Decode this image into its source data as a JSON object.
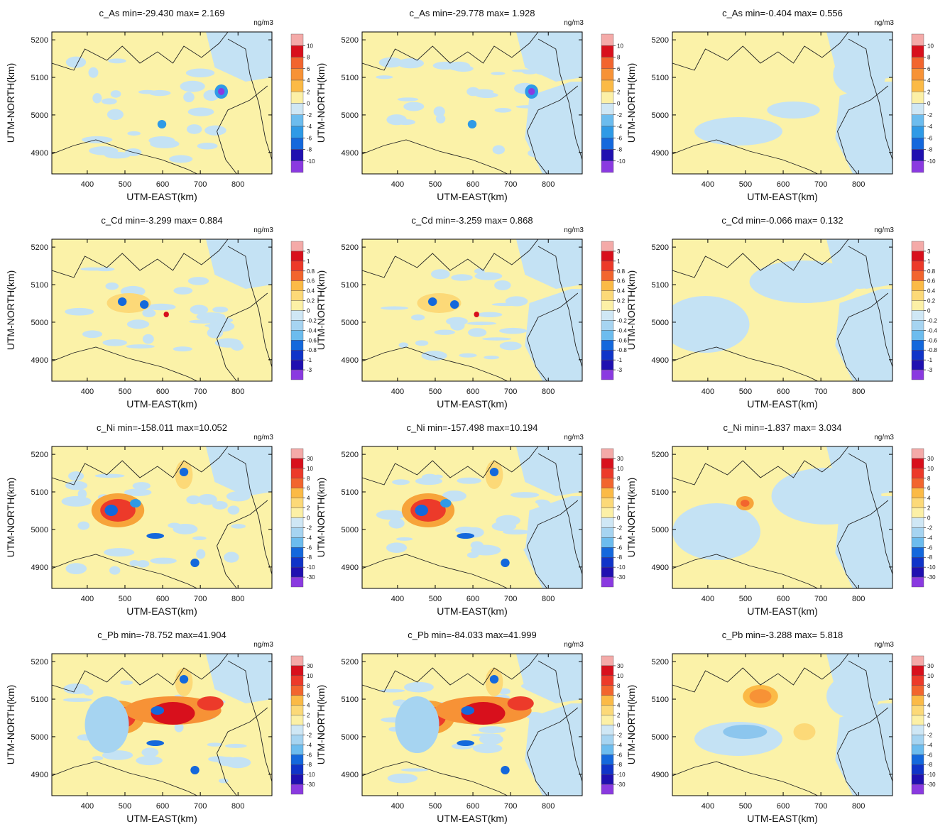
{
  "chart_data": [
    {
      "type": "contour-map",
      "title": "c_As min=-29.430 max= 2.169",
      "unit": "ng/m3",
      "x_label": "UTM-EAST(km)",
      "y_label": "UTM-NORTH(km)",
      "xlim": [
        306,
        890
      ],
      "ylim": [
        4843,
        5221
      ],
      "xticks": [
        400,
        500,
        600,
        700,
        800
      ],
      "yticks": [
        4900,
        5000,
        5100,
        5200
      ],
      "colorbar_ticks": [
        10,
        8,
        6,
        4,
        2,
        0,
        -2,
        -4,
        -6,
        -8,
        -10
      ]
    },
    {
      "type": "contour-map",
      "title": "c_As min=-29.778 max= 1.928",
      "unit": "ng/m3",
      "x_label": "UTM-EAST(km)",
      "y_label": "UTM-NORTH(km)",
      "xlim": [
        306,
        890
      ],
      "ylim": [
        4843,
        5221
      ],
      "xticks": [
        400,
        500,
        600,
        700,
        800
      ],
      "yticks": [
        4900,
        5000,
        5100,
        5200
      ],
      "colorbar_ticks": [
        10,
        8,
        6,
        4,
        2,
        0,
        -2,
        -4,
        -6,
        -8,
        -10
      ]
    },
    {
      "type": "contour-map",
      "title": "c_As min=-0.404 max= 0.556",
      "unit": "ng/m3",
      "x_label": "UTM-EAST(km)",
      "y_label": "UTM-NORTH(km)",
      "xlim": [
        306,
        890
      ],
      "ylim": [
        4843,
        5221
      ],
      "xticks": [
        400,
        500,
        600,
        700,
        800
      ],
      "yticks": [
        4900,
        5000,
        5100,
        5200
      ],
      "colorbar_ticks": [
        10,
        8,
        6,
        4,
        2,
        0,
        -2,
        -4,
        -6,
        -8,
        -10
      ]
    },
    {
      "type": "contour-map",
      "title": "c_Cd min=-3.299 max= 0.884",
      "unit": "ng/m3",
      "x_label": "UTM-EAST(km)",
      "y_label": "UTM-NORTH(km)",
      "xlim": [
        306,
        890
      ],
      "ylim": [
        4843,
        5221
      ],
      "xticks": [
        400,
        500,
        600,
        700,
        800
      ],
      "yticks": [
        4900,
        5000,
        5100,
        5200
      ],
      "colorbar_ticks": [
        3,
        1,
        0.8,
        0.6,
        0.4,
        0.2,
        0,
        -0.2,
        -0.4,
        -0.6,
        -0.8,
        -1,
        -3
      ]
    },
    {
      "type": "contour-map",
      "title": "c_Cd min=-3.259 max= 0.868",
      "unit": "ng/m3",
      "x_label": "UTM-EAST(km)",
      "y_label": "UTM-NORTH(km)",
      "xlim": [
        306,
        890
      ],
      "ylim": [
        4843,
        5221
      ],
      "xticks": [
        400,
        500,
        600,
        700,
        800
      ],
      "yticks": [
        4900,
        5000,
        5100,
        5200
      ],
      "colorbar_ticks": [
        3,
        1,
        0.8,
        0.6,
        0.4,
        0.2,
        0,
        -0.2,
        -0.4,
        -0.6,
        -0.8,
        -1,
        -3
      ]
    },
    {
      "type": "contour-map",
      "title": "c_Cd min=-0.066 max= 0.132",
      "unit": "ng/m3",
      "x_label": "UTM-EAST(km)",
      "y_label": "UTM-NORTH(km)",
      "xlim": [
        306,
        890
      ],
      "ylim": [
        4843,
        5221
      ],
      "xticks": [
        400,
        500,
        600,
        700,
        800
      ],
      "yticks": [
        4900,
        5000,
        5100,
        5200
      ],
      "colorbar_ticks": [
        3,
        1,
        0.8,
        0.6,
        0.4,
        0.2,
        0,
        -0.2,
        -0.4,
        -0.6,
        -0.8,
        -1,
        -3
      ]
    },
    {
      "type": "contour-map",
      "title": "c_Ni min=-158.011 max=10.052",
      "unit": "ng/m3",
      "x_label": "UTM-EAST(km)",
      "y_label": "UTM-NORTH(km)",
      "xlim": [
        306,
        890
      ],
      "ylim": [
        4843,
        5221
      ],
      "xticks": [
        400,
        500,
        600,
        700,
        800
      ],
      "yticks": [
        4900,
        5000,
        5100,
        5200
      ],
      "colorbar_ticks": [
        30,
        10,
        8,
        6,
        4,
        2,
        0,
        -2,
        -4,
        -6,
        -8,
        -10,
        -30
      ]
    },
    {
      "type": "contour-map",
      "title": "c_Ni min=-157.498 max=10.194",
      "unit": "ng/m3",
      "x_label": "UTM-EAST(km)",
      "y_label": "UTM-NORTH(km)",
      "xlim": [
        306,
        890
      ],
      "ylim": [
        4843,
        5221
      ],
      "xticks": [
        400,
        500,
        600,
        700,
        800
      ],
      "yticks": [
        4900,
        5000,
        5100,
        5200
      ],
      "colorbar_ticks": [
        30,
        10,
        8,
        6,
        4,
        2,
        0,
        -2,
        -4,
        -6,
        -8,
        -10,
        -30
      ]
    },
    {
      "type": "contour-map",
      "title": "c_Ni min=-1.837 max= 3.034",
      "unit": "ng/m3",
      "x_label": "UTM-EAST(km)",
      "y_label": "UTM-NORTH(km)",
      "xlim": [
        306,
        890
      ],
      "ylim": [
        4843,
        5221
      ],
      "xticks": [
        400,
        500,
        600,
        700,
        800
      ],
      "yticks": [
        4900,
        5000,
        5100,
        5200
      ],
      "colorbar_ticks": [
        30,
        10,
        8,
        6,
        4,
        2,
        0,
        -2,
        -4,
        -6,
        -8,
        -10,
        -30
      ]
    },
    {
      "type": "contour-map",
      "title": "c_Pb min=-78.752 max=41.904",
      "unit": "ng/m3",
      "x_label": "UTM-EAST(km)",
      "y_label": "UTM-NORTH(km)",
      "xlim": [
        306,
        890
      ],
      "ylim": [
        4843,
        5221
      ],
      "xticks": [
        400,
        500,
        600,
        700,
        800
      ],
      "yticks": [
        4900,
        5000,
        5100,
        5200
      ],
      "colorbar_ticks": [
        30,
        10,
        8,
        6,
        4,
        2,
        0,
        -2,
        -4,
        -6,
        -8,
        -10,
        -30
      ]
    },
    {
      "type": "contour-map",
      "title": "c_Pb min=-84.033 max=41.999",
      "unit": "ng/m3",
      "x_label": "UTM-EAST(km)",
      "y_label": "UTM-NORTH(km)",
      "xlim": [
        306,
        890
      ],
      "ylim": [
        4843,
        5221
      ],
      "xticks": [
        400,
        500,
        600,
        700,
        800
      ],
      "yticks": [
        4900,
        5000,
        5100,
        5200
      ],
      "colorbar_ticks": [
        30,
        10,
        8,
        6,
        4,
        2,
        0,
        -2,
        -4,
        -6,
        -8,
        -10,
        -30
      ]
    },
    {
      "type": "contour-map",
      "title": "c_Pb min=-3.288 max= 5.818",
      "unit": "ng/m3",
      "x_label": "UTM-EAST(km)",
      "y_label": "UTM-NORTH(km)",
      "xlim": [
        306,
        890
      ],
      "ylim": [
        4843,
        5221
      ],
      "xticks": [
        400,
        500,
        600,
        700,
        800
      ],
      "yticks": [
        4900,
        5000,
        5100,
        5200
      ],
      "colorbar_ticks": [
        30,
        10,
        8,
        6,
        4,
        2,
        0,
        -2,
        -4,
        -6,
        -8,
        -10,
        -30
      ]
    }
  ],
  "palette": [
    "#f4aaa8",
    "#d8101c",
    "#ec3a2a",
    "#f2652e",
    "#f79236",
    "#fbba46",
    "#fcd978",
    "#fcf0a6",
    "#cfe7f5",
    "#a6d4f1",
    "#6cbcee",
    "#2f9ae6",
    "#1468dc",
    "#1034c8",
    "#2010b0",
    "#8a3ae0"
  ]
}
